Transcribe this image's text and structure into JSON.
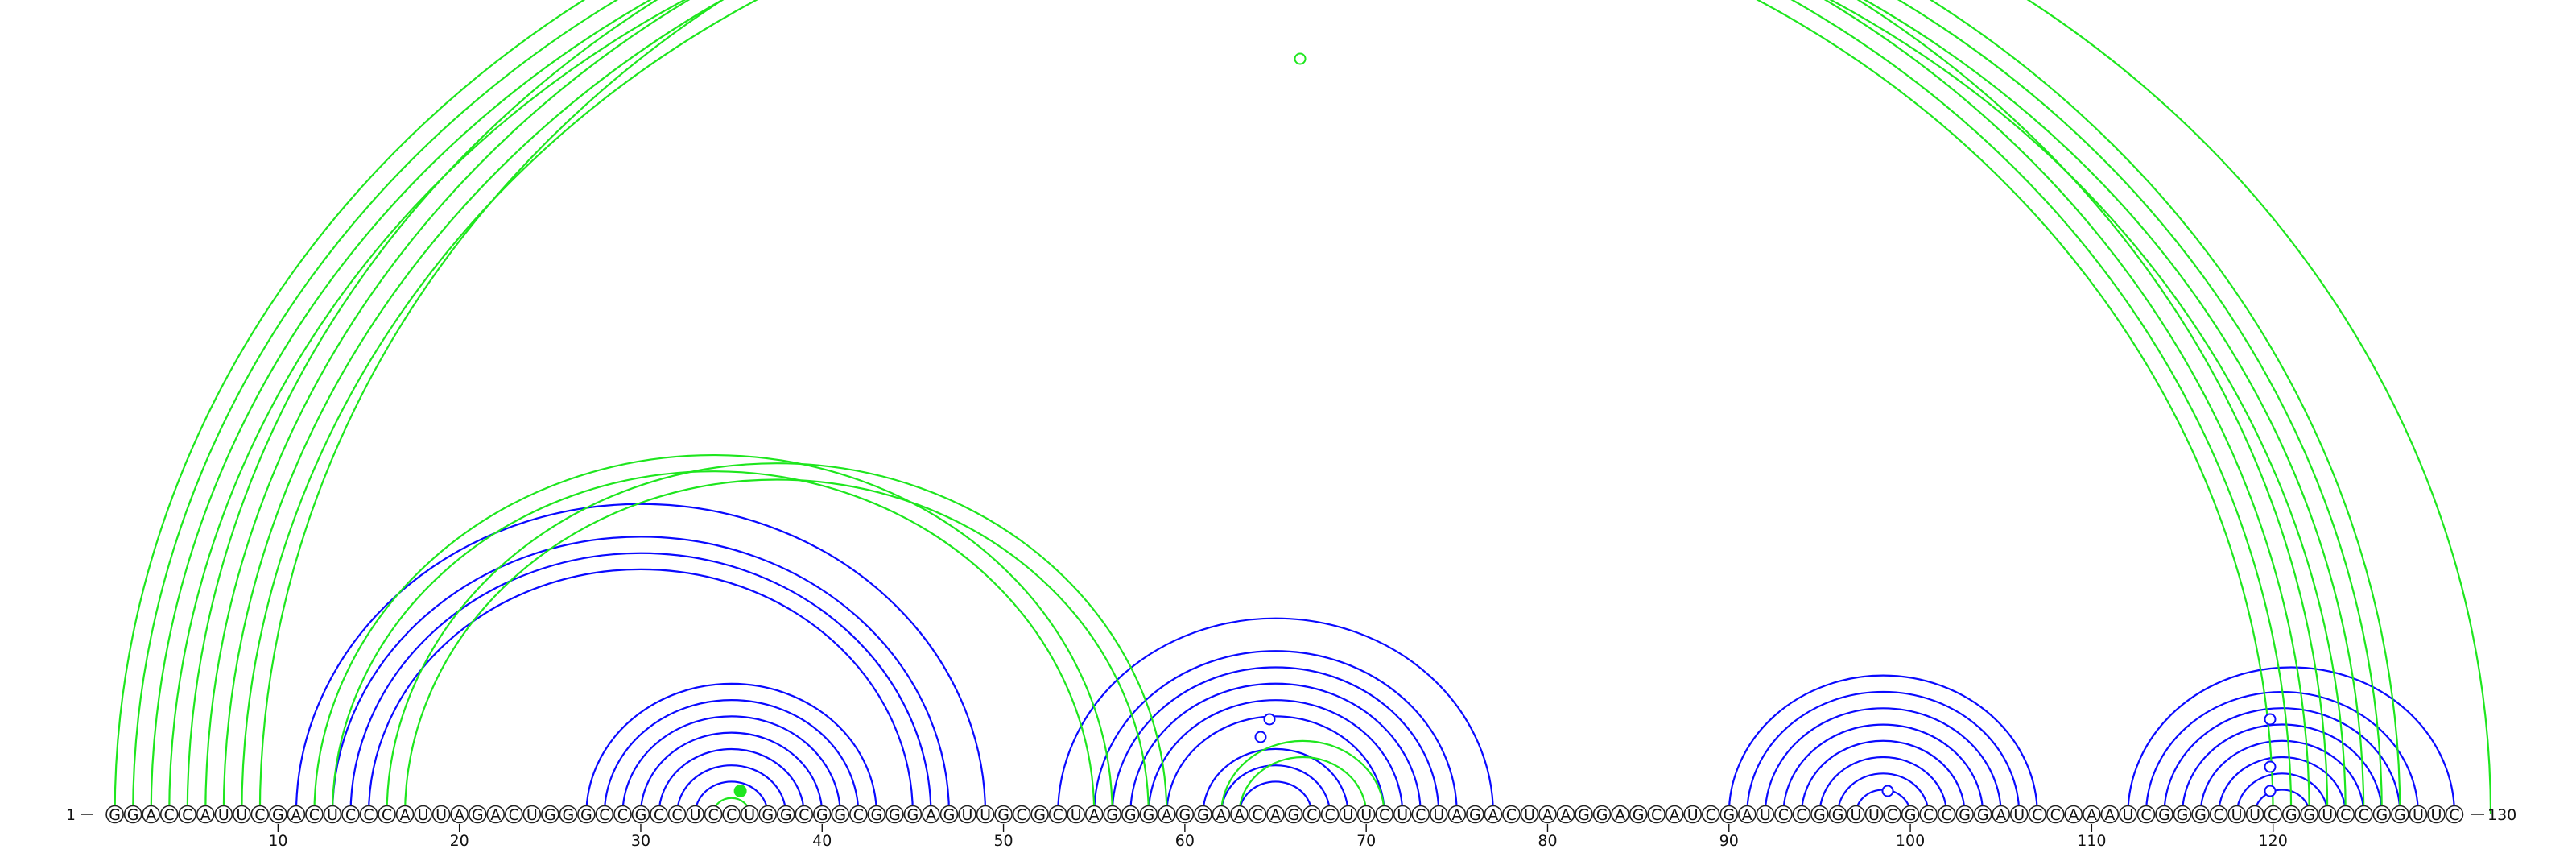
{
  "sequence": "GGACCAUUCGACUCCCAUUAGACUGGGCCGCCUCCUGGCGGCGGGAGUUGCGCUAGGGAGGAACAGCCUUCUCUAGACUAAGGAGCAUCGAUCCGGUUCGCCGGAUCCAAAUCGGGCUUCGGUCCGGUUC",
  "start_label": "1",
  "end_label": "130",
  "ticks": [
    10,
    20,
    30,
    40,
    50,
    60,
    70,
    80,
    90,
    100,
    110,
    120
  ],
  "colors": {
    "blue": "#0a0aff",
    "green": "#1ee61e"
  },
  "arcs": {
    "blue": [
      [
        11,
        49
      ],
      [
        13,
        47
      ],
      [
        14,
        46
      ],
      [
        15,
        45
      ],
      [
        27,
        43
      ],
      [
        28,
        42
      ],
      [
        29,
        41
      ],
      [
        30,
        40
      ],
      [
        31,
        39
      ],
      [
        32,
        38
      ],
      [
        33,
        37
      ],
      [
        53,
        77
      ],
      [
        55,
        75
      ],
      [
        56,
        74
      ],
      [
        57,
        73
      ],
      [
        58,
        72
      ],
      [
        59,
        71
      ],
      [
        61,
        69
      ],
      [
        62,
        68
      ],
      [
        63,
        67
      ],
      [
        90,
        107
      ],
      [
        91,
        106
      ],
      [
        92,
        105
      ],
      [
        93,
        104
      ],
      [
        94,
        103
      ],
      [
        95,
        102
      ],
      [
        96,
        101
      ],
      [
        97,
        100
      ],
      [
        112,
        130
      ],
      [
        113,
        128
      ],
      [
        114,
        127
      ],
      [
        115,
        126
      ],
      [
        116,
        125
      ],
      [
        117,
        124
      ],
      [
        118,
        123
      ],
      [
        119,
        122
      ]
    ],
    "green": [
      [
        1,
        123
      ],
      [
        2,
        122
      ],
      [
        3,
        121
      ],
      [
        4,
        120
      ],
      [
        5,
        127
      ],
      [
        6,
        126
      ],
      [
        7,
        125
      ],
      [
        8,
        124
      ],
      [
        9,
        132
      ],
      [
        12,
        56
      ],
      [
        13,
        55
      ],
      [
        16,
        59
      ],
      [
        17,
        58
      ],
      [
        34,
        36
      ],
      [
        62,
        71
      ],
      [
        63,
        70
      ]
    ]
  },
  "markers": {
    "green_hollow": [
      66
    ],
    "green_filled": [
      35
    ],
    "blue_hollow": [
      64.5,
      64,
      98.5,
      120.5,
      120.5,
      120.5
    ]
  }
}
